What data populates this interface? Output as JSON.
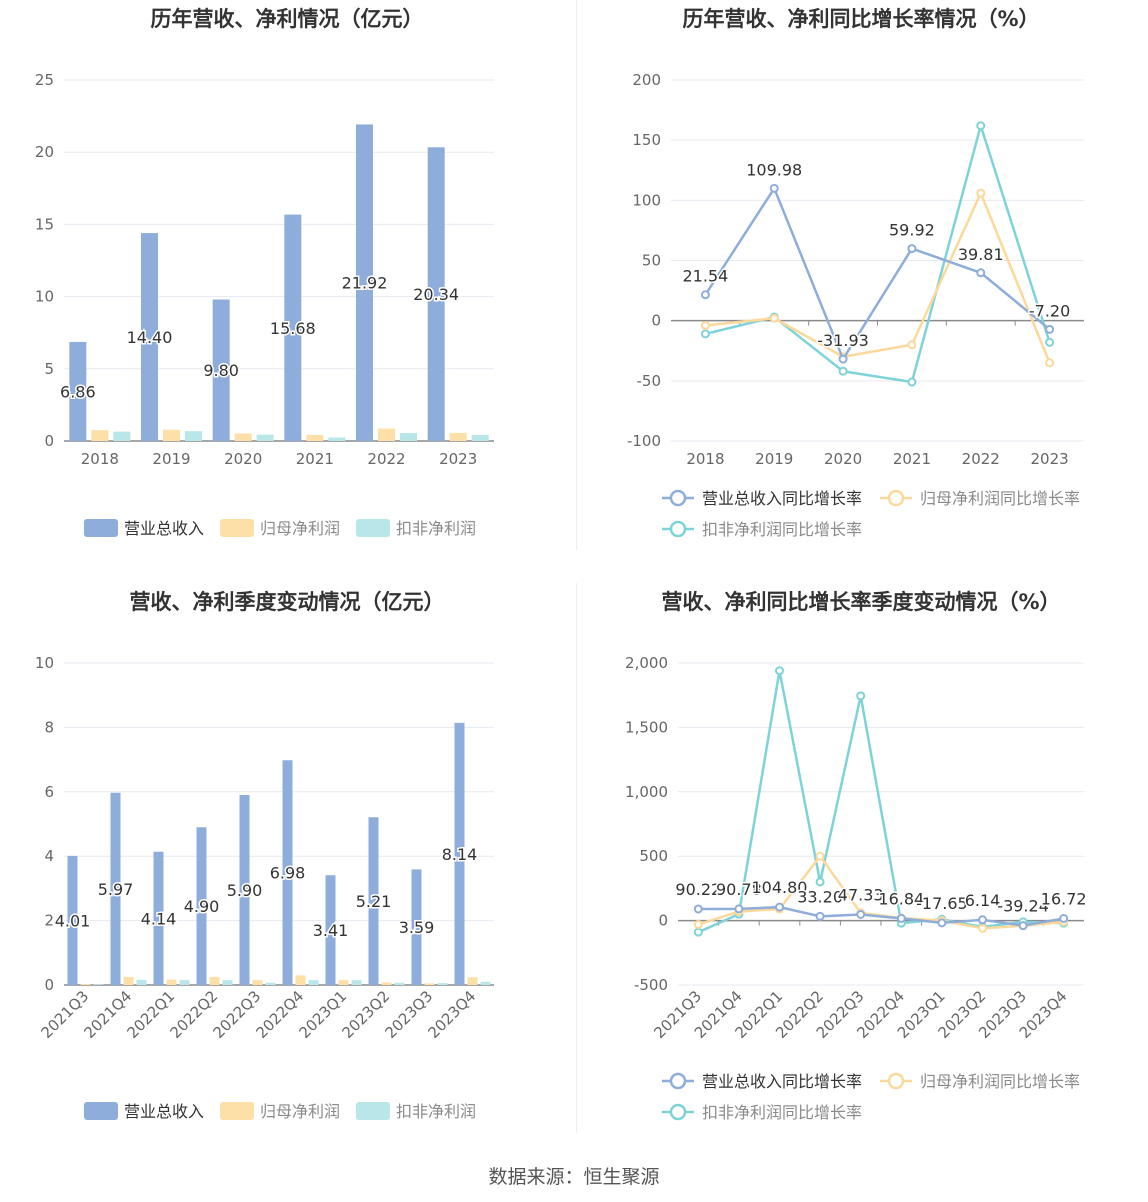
{
  "colors": {
    "revenue": "#8EADDA",
    "net_profit": "#FDDFA8",
    "deducted_profit": "#B9E6E9",
    "line_revenue": "#8EADDA",
    "line_net": "#FCD99A",
    "line_deducted": "#7ED3D8",
    "grid": "#E6E9F0",
    "axis": "#8a8a8a",
    "text": "#666666",
    "title": "#333333"
  },
  "source_text": "数据来源：恒生聚源",
  "chart_data": [
    {
      "id": "annual_bar",
      "type": "bar",
      "title": "历年营收、净利情况（亿元）",
      "categories": [
        "2018",
        "2019",
        "2020",
        "2021",
        "2022",
        "2023"
      ],
      "ylim": [
        0,
        25
      ],
      "yticks": [
        "0",
        "5",
        "10",
        "15",
        "20",
        "25"
      ],
      "ytick_values": [
        0,
        5,
        10,
        15,
        20,
        25
      ],
      "series": [
        {
          "name": "营业总收入",
          "values": [
            6.86,
            14.4,
            9.8,
            15.68,
            21.92,
            20.34
          ],
          "labels": [
            "6.86",
            "14.40",
            "9.80",
            "15.68",
            "21.92",
            "20.34"
          ]
        },
        {
          "name": "归母净利润",
          "values": [
            0.75,
            0.78,
            0.52,
            0.42,
            0.86,
            0.56
          ]
        },
        {
          "name": "扣非净利润",
          "values": [
            0.65,
            0.68,
            0.44,
            0.24,
            0.55,
            0.42
          ]
        }
      ],
      "legend": [
        "营业总收入",
        "归母净利润",
        "扣非净利润"
      ],
      "grid": true,
      "legend_position": "bottom"
    },
    {
      "id": "annual_line",
      "type": "line",
      "title": "历年营收、净利同比增长率情况（%）",
      "categories": [
        "2018",
        "2019",
        "2020",
        "2021",
        "2022",
        "2023"
      ],
      "ylim": [
        -100,
        200
      ],
      "yticks": [
        "-100",
        "-50",
        "0",
        "50",
        "100",
        "150",
        "200"
      ],
      "ytick_values": [
        -100,
        -50,
        0,
        50,
        100,
        150,
        200
      ],
      "series": [
        {
          "name": "营业总收入同比增长率",
          "values": [
            21.54,
            109.98,
            -31.93,
            59.92,
            39.81,
            -7.2
          ],
          "labels": [
            "21.54",
            "109.98",
            "-31.93",
            "59.92",
            "39.81",
            "-7.20"
          ]
        },
        {
          "name": "归母净利润同比增长率",
          "values": [
            -4,
            2,
            -30,
            -20,
            106,
            -35
          ]
        },
        {
          "name": "扣非净利润同比增长率",
          "values": [
            -11,
            3,
            -42,
            -51,
            162,
            -18
          ]
        }
      ],
      "legend": [
        "营业总收入同比增长率",
        "归母净利润同比增长率",
        "扣非净利润同比增长率"
      ],
      "grid": true,
      "legend_position": "bottom"
    },
    {
      "id": "quarter_bar",
      "type": "bar",
      "title": "营收、净利季度变动情况（亿元）",
      "categories": [
        "2021Q3",
        "2021Q4",
        "2022Q1",
        "2022Q2",
        "2022Q3",
        "2022Q4",
        "2023Q1",
        "2023Q2",
        "2023Q3",
        "2023Q4"
      ],
      "ylim": [
        0,
        10
      ],
      "yticks": [
        "0",
        "2",
        "4",
        "6",
        "8",
        "10"
      ],
      "ytick_values": [
        0,
        2,
        4,
        6,
        8,
        10
      ],
      "series": [
        {
          "name": "营业总收入",
          "values": [
            4.01,
            5.97,
            4.14,
            4.9,
            5.9,
            6.98,
            3.41,
            5.21,
            3.59,
            8.14
          ],
          "labels": [
            "4.01",
            "5.97",
            "4.14",
            "4.90",
            "5.90",
            "6.98",
            "3.41",
            "5.21",
            "3.59",
            "8.14"
          ]
        },
        {
          "name": "归母净利润",
          "values": [
            0.03,
            0.25,
            0.17,
            0.25,
            0.15,
            0.3,
            0.15,
            0.08,
            0.05,
            0.24
          ]
        },
        {
          "name": "扣非净利润",
          "values": [
            0.02,
            0.16,
            0.15,
            0.15,
            0.07,
            0.15,
            0.15,
            0.07,
            0.06,
            0.1
          ]
        }
      ],
      "legend": [
        "营业总收入",
        "归母净利润",
        "扣非净利润"
      ],
      "grid": true,
      "legend_position": "bottom"
    },
    {
      "id": "quarter_line",
      "type": "line",
      "title": "营收、净利同比增长率季度变动情况（%）",
      "categories": [
        "2021Q3",
        "2021Q4",
        "2022Q1",
        "2022Q2",
        "2022Q3",
        "2022Q4",
        "2023Q1",
        "2023Q2",
        "2023Q3",
        "2023Q4"
      ],
      "ylim": [
        -500,
        2000
      ],
      "yticks": [
        "-500",
        "0",
        "500",
        "1,000",
        "1,500",
        "2,000"
      ],
      "ytick_values": [
        -500,
        0,
        500,
        1000,
        1500,
        2000
      ],
      "series": [
        {
          "name": "营业总收入同比增长率",
          "values": [
            90.22,
            90.78,
            104.8,
            33.2,
            47.33,
            16.84,
            -17.65,
            6.14,
            -39.24,
            16.72
          ],
          "labels": [
            "90.22",
            "90.78",
            "104.80",
            "33.20",
            "47.33",
            "16.84",
            "-17.65",
            "6.14",
            "-39.24",
            "16.72"
          ]
        },
        {
          "name": "归母净利润同比增长率",
          "values": [
            -30,
            70,
            90,
            500,
            60,
            20,
            0,
            -60,
            -40,
            -10
          ]
        },
        {
          "name": "扣非净利润同比增长率",
          "values": [
            -90,
            50,
            1940,
            300,
            1745,
            -20,
            10,
            -50,
            -10,
            -20
          ]
        }
      ],
      "legend": [
        "营业总收入同比增长率",
        "归母净利润同比增长率",
        "扣非净利润同比增长率"
      ],
      "grid": true,
      "legend_position": "bottom"
    }
  ]
}
